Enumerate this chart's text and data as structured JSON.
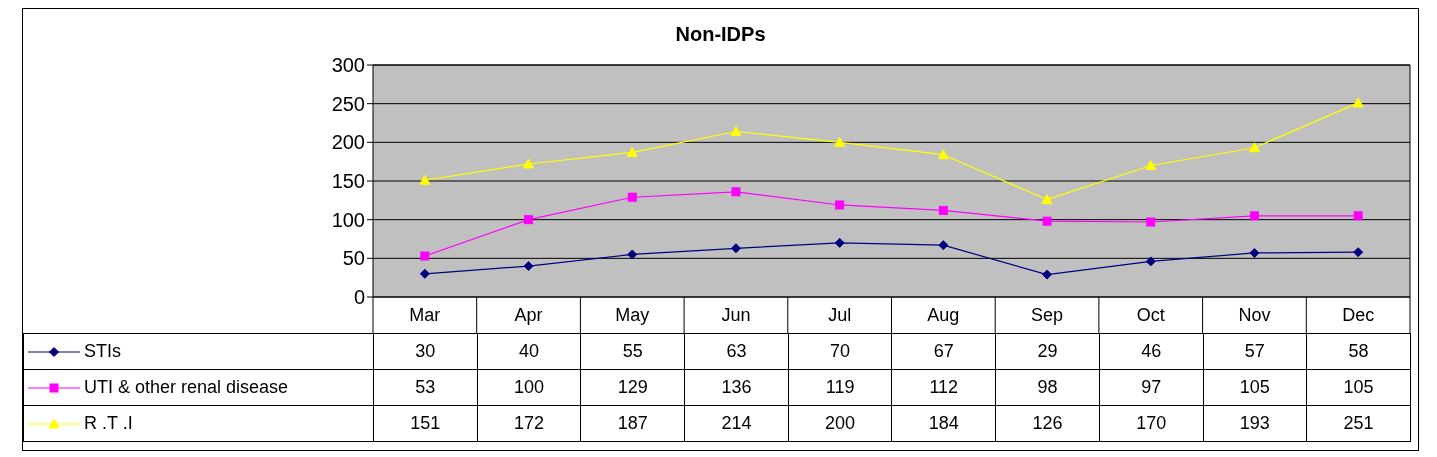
{
  "chart_data": {
    "type": "line",
    "title": "Non-IDPs",
    "categories": [
      "Mar",
      "Apr",
      "May",
      "Jun",
      "Jul",
      "Aug",
      "Sep",
      "Oct",
      "Nov",
      "Dec"
    ],
    "series": [
      {
        "name": "STIs",
        "color": "#000080",
        "marker": "diamond",
        "values": [
          30,
          40,
          55,
          63,
          70,
          67,
          29,
          46,
          57,
          58
        ]
      },
      {
        "name": "UTI & other renal disease",
        "color": "#ff00ff",
        "marker": "square",
        "values": [
          53,
          100,
          129,
          136,
          119,
          112,
          98,
          97,
          105,
          105
        ]
      },
      {
        "name": "R .T .I",
        "color": "#ffff00",
        "marker": "triangle",
        "values": [
          151,
          172,
          187,
          214,
          200,
          184,
          126,
          170,
          193,
          251
        ]
      }
    ],
    "ylim": [
      0,
      300
    ],
    "yticks": [
      0,
      50,
      100,
      150,
      200,
      250,
      300
    ],
    "grid": "y",
    "legend": "bottom",
    "data_labels": true
  }
}
